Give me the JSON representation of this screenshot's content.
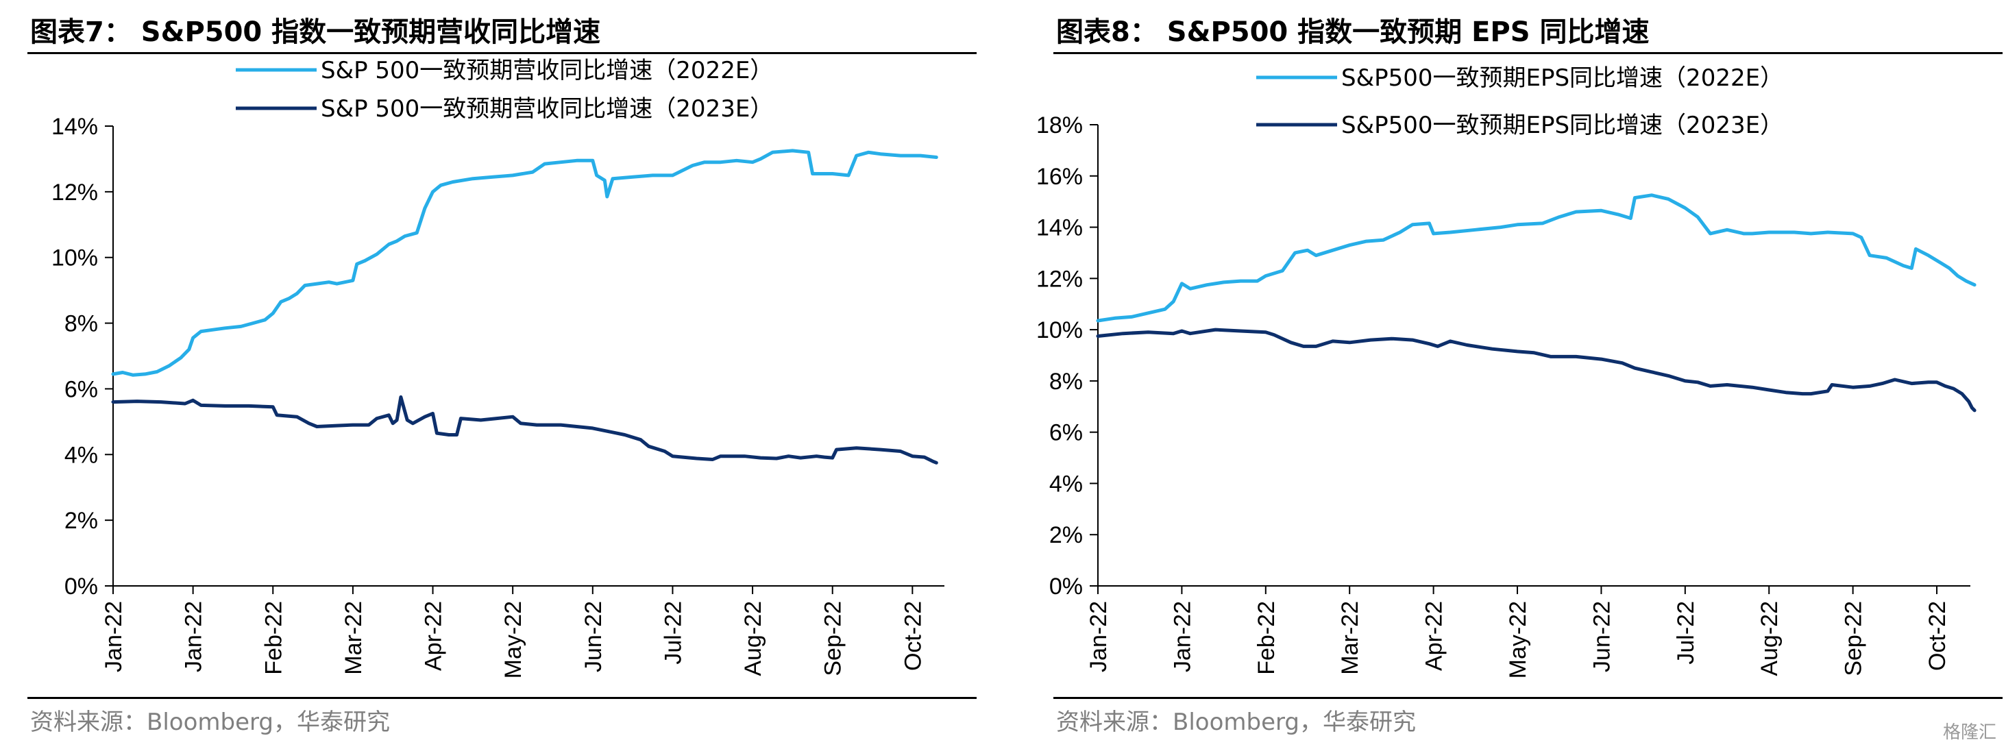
{
  "colors": {
    "series_2022": "#27aee8",
    "series_2023": "#0d2f6b"
  },
  "watermark": "格隆汇",
  "panels": [
    {
      "title": "图表7： S&P500 指数一致预期营收同比增速",
      "source": "资料来源：Bloomberg，华泰研究"
    },
    {
      "title": "图表8： S&P500 指数一致预期 EPS 同比增速",
      "source": "资料来源：Bloomberg，华泰研究"
    }
  ],
  "chart_data": [
    {
      "type": "line",
      "ylim": [
        0,
        14
      ],
      "yticks": [
        "0%",
        "2%",
        "4%",
        "6%",
        "8%",
        "10%",
        "12%",
        "14%"
      ],
      "yticks_values": [
        0,
        2,
        4,
        6,
        8,
        10,
        12,
        14
      ],
      "xlim": [
        0,
        10.4
      ],
      "xticks": [
        "Jan-22",
        "Jan-22",
        "Feb-22",
        "Mar-22",
        "Apr-22",
        "May-22",
        "Jun-22",
        "Jul-22",
        "Aug-22",
        "Sep-22",
        "Oct-22"
      ],
      "legend_position": "top",
      "grid": false,
      "series": [
        {
          "name": "S&P 500一致预期营收同比增速（2022E）",
          "color": "#27aee8",
          "points": [
            [
              0.0,
              6.45
            ],
            [
              0.12,
              6.5
            ],
            [
              0.25,
              6.42
            ],
            [
              0.4,
              6.45
            ],
            [
              0.55,
              6.52
            ],
            [
              0.7,
              6.7
            ],
            [
              0.85,
              6.95
            ],
            [
              0.95,
              7.2
            ],
            [
              1.0,
              7.55
            ],
            [
              1.1,
              7.75
            ],
            [
              1.25,
              7.8
            ],
            [
              1.4,
              7.85
            ],
            [
              1.6,
              7.9
            ],
            [
              1.75,
              8.0
            ],
            [
              1.9,
              8.1
            ],
            [
              2.0,
              8.3
            ],
            [
              2.1,
              8.65
            ],
            [
              2.2,
              8.75
            ],
            [
              2.3,
              8.9
            ],
            [
              2.4,
              9.15
            ],
            [
              2.55,
              9.2
            ],
            [
              2.7,
              9.25
            ],
            [
              2.8,
              9.2
            ],
            [
              2.9,
              9.25
            ],
            [
              3.0,
              9.3
            ],
            [
              3.05,
              9.8
            ],
            [
              3.15,
              9.9
            ],
            [
              3.3,
              10.1
            ],
            [
              3.45,
              10.4
            ],
            [
              3.55,
              10.5
            ],
            [
              3.65,
              10.65
            ],
            [
              3.8,
              10.75
            ],
            [
              3.9,
              11.5
            ],
            [
              4.0,
              12.0
            ],
            [
              4.1,
              12.2
            ],
            [
              4.25,
              12.3
            ],
            [
              4.5,
              12.4
            ],
            [
              4.75,
              12.45
            ],
            [
              5.0,
              12.5
            ],
            [
              5.25,
              12.6
            ],
            [
              5.4,
              12.85
            ],
            [
              5.6,
              12.9
            ],
            [
              5.8,
              12.95
            ],
            [
              6.0,
              12.95
            ],
            [
              6.05,
              12.5
            ],
            [
              6.15,
              12.35
            ],
            [
              6.18,
              11.85
            ],
            [
              6.25,
              12.4
            ],
            [
              6.5,
              12.45
            ],
            [
              6.75,
              12.5
            ],
            [
              7.0,
              12.5
            ],
            [
              7.25,
              12.8
            ],
            [
              7.4,
              12.9
            ],
            [
              7.6,
              12.9
            ],
            [
              7.8,
              12.95
            ],
            [
              8.0,
              12.9
            ],
            [
              8.1,
              13.0
            ],
            [
              8.25,
              13.2
            ],
            [
              8.5,
              13.25
            ],
            [
              8.7,
              13.2
            ],
            [
              8.75,
              12.55
            ],
            [
              9.0,
              12.55
            ],
            [
              9.2,
              12.5
            ],
            [
              9.3,
              13.1
            ],
            [
              9.45,
              13.2
            ],
            [
              9.6,
              13.15
            ],
            [
              9.85,
              13.1
            ],
            [
              10.1,
              13.1
            ],
            [
              10.3,
              13.05
            ]
          ]
        },
        {
          "name": "S&P 500一致预期营收同比增速（2023E）",
          "color": "#0d2f6b",
          "points": [
            [
              0.0,
              5.6
            ],
            [
              0.3,
              5.62
            ],
            [
              0.6,
              5.6
            ],
            [
              0.9,
              5.55
            ],
            [
              1.0,
              5.65
            ],
            [
              1.1,
              5.5
            ],
            [
              1.4,
              5.48
            ],
            [
              1.7,
              5.48
            ],
            [
              2.0,
              5.45
            ],
            [
              2.05,
              5.2
            ],
            [
              2.3,
              5.15
            ],
            [
              2.45,
              4.95
            ],
            [
              2.55,
              4.85
            ],
            [
              2.8,
              4.88
            ],
            [
              3.0,
              4.9
            ],
            [
              3.2,
              4.9
            ],
            [
              3.3,
              5.1
            ],
            [
              3.45,
              5.2
            ],
            [
              3.5,
              4.95
            ],
            [
              3.55,
              5.05
            ],
            [
              3.6,
              5.75
            ],
            [
              3.68,
              5.05
            ],
            [
              3.75,
              4.95
            ],
            [
              3.9,
              5.15
            ],
            [
              4.0,
              5.25
            ],
            [
              4.05,
              4.65
            ],
            [
              4.2,
              4.6
            ],
            [
              4.3,
              4.6
            ],
            [
              4.35,
              5.1
            ],
            [
              4.6,
              5.05
            ],
            [
              4.8,
              5.1
            ],
            [
              5.0,
              5.15
            ],
            [
              5.1,
              4.95
            ],
            [
              5.3,
              4.9
            ],
            [
              5.6,
              4.9
            ],
            [
              5.8,
              4.85
            ],
            [
              6.0,
              4.8
            ],
            [
              6.2,
              4.7
            ],
            [
              6.4,
              4.6
            ],
            [
              6.6,
              4.45
            ],
            [
              6.7,
              4.25
            ],
            [
              6.9,
              4.1
            ],
            [
              7.0,
              3.95
            ],
            [
              7.3,
              3.88
            ],
            [
              7.5,
              3.85
            ],
            [
              7.6,
              3.95
            ],
            [
              7.9,
              3.95
            ],
            [
              8.1,
              3.9
            ],
            [
              8.3,
              3.88
            ],
            [
              8.45,
              3.95
            ],
            [
              8.6,
              3.9
            ],
            [
              8.8,
              3.95
            ],
            [
              8.9,
              3.92
            ],
            [
              9.0,
              3.9
            ],
            [
              9.05,
              4.15
            ],
            [
              9.3,
              4.2
            ],
            [
              9.6,
              4.15
            ],
            [
              9.85,
              4.1
            ],
            [
              10.0,
              3.95
            ],
            [
              10.15,
              3.92
            ],
            [
              10.25,
              3.8
            ],
            [
              10.3,
              3.75
            ]
          ]
        }
      ]
    },
    {
      "type": "line",
      "ylim": [
        0,
        18
      ],
      "yticks": [
        "0%",
        "2%",
        "4%",
        "6%",
        "8%",
        "10%",
        "12%",
        "14%",
        "16%",
        "18%"
      ],
      "yticks_values": [
        0,
        2,
        4,
        6,
        8,
        10,
        12,
        14,
        16,
        18
      ],
      "xlim": [
        0,
        10.4
      ],
      "xticks": [
        "Jan-22",
        "Jan-22",
        "Feb-22",
        "Mar-22",
        "Apr-22",
        "May-22",
        "Jun-22",
        "Jul-22",
        "Aug-22",
        "Sep-22",
        "Oct-22"
      ],
      "legend_position": "top",
      "grid": false,
      "series": [
        {
          "name": "S&P500一致预期EPS同比增速（2022E）",
          "color": "#27aee8",
          "points": [
            [
              0.0,
              10.35
            ],
            [
              0.2,
              10.45
            ],
            [
              0.4,
              10.5
            ],
            [
              0.6,
              10.65
            ],
            [
              0.8,
              10.8
            ],
            [
              0.9,
              11.1
            ],
            [
              1.0,
              11.8
            ],
            [
              1.1,
              11.6
            ],
            [
              1.3,
              11.75
            ],
            [
              1.5,
              11.85
            ],
            [
              1.7,
              11.9
            ],
            [
              1.9,
              11.9
            ],
            [
              2.0,
              12.1
            ],
            [
              2.2,
              12.3
            ],
            [
              2.35,
              13.0
            ],
            [
              2.5,
              13.1
            ],
            [
              2.6,
              12.9
            ],
            [
              2.8,
              13.1
            ],
            [
              3.0,
              13.3
            ],
            [
              3.2,
              13.45
            ],
            [
              3.4,
              13.5
            ],
            [
              3.6,
              13.8
            ],
            [
              3.75,
              14.1
            ],
            [
              3.95,
              14.15
            ],
            [
              4.0,
              13.75
            ],
            [
              4.2,
              13.8
            ],
            [
              4.5,
              13.9
            ],
            [
              4.8,
              14.0
            ],
            [
              5.0,
              14.1
            ],
            [
              5.3,
              14.15
            ],
            [
              5.5,
              14.4
            ],
            [
              5.7,
              14.6
            ],
            [
              6.0,
              14.65
            ],
            [
              6.2,
              14.5
            ],
            [
              6.35,
              14.35
            ],
            [
              6.4,
              15.15
            ],
            [
              6.6,
              15.25
            ],
            [
              6.8,
              15.1
            ],
            [
              7.0,
              14.75
            ],
            [
              7.15,
              14.4
            ],
            [
              7.3,
              13.75
            ],
            [
              7.5,
              13.9
            ],
            [
              7.7,
              13.75
            ],
            [
              7.8,
              13.75
            ],
            [
              8.0,
              13.8
            ],
            [
              8.3,
              13.8
            ],
            [
              8.5,
              13.75
            ],
            [
              8.7,
              13.8
            ],
            [
              9.0,
              13.75
            ],
            [
              9.1,
              13.6
            ],
            [
              9.2,
              12.9
            ],
            [
              9.4,
              12.8
            ],
            [
              9.6,
              12.5
            ],
            [
              9.7,
              12.4
            ],
            [
              9.75,
              13.15
            ],
            [
              9.9,
              12.9
            ],
            [
              10.05,
              12.6
            ],
            [
              10.15,
              12.4
            ],
            [
              10.25,
              12.1
            ],
            [
              10.35,
              11.9
            ],
            [
              10.45,
              11.75
            ]
          ]
        },
        {
          "name": "S&P500一致预期EPS同比增速（2023E）",
          "color": "#0d2f6b",
          "points": [
            [
              0.0,
              9.75
            ],
            [
              0.3,
              9.85
            ],
            [
              0.6,
              9.9
            ],
            [
              0.9,
              9.85
            ],
            [
              1.0,
              9.95
            ],
            [
              1.1,
              9.85
            ],
            [
              1.4,
              10.0
            ],
            [
              1.7,
              9.95
            ],
            [
              2.0,
              9.9
            ],
            [
              2.1,
              9.8
            ],
            [
              2.3,
              9.5
            ],
            [
              2.45,
              9.35
            ],
            [
              2.6,
              9.35
            ],
            [
              2.8,
              9.55
            ],
            [
              3.0,
              9.5
            ],
            [
              3.25,
              9.6
            ],
            [
              3.5,
              9.65
            ],
            [
              3.75,
              9.6
            ],
            [
              3.95,
              9.45
            ],
            [
              4.05,
              9.35
            ],
            [
              4.2,
              9.55
            ],
            [
              4.4,
              9.4
            ],
            [
              4.7,
              9.25
            ],
            [
              5.0,
              9.15
            ],
            [
              5.2,
              9.1
            ],
            [
              5.4,
              8.95
            ],
            [
              5.7,
              8.95
            ],
            [
              6.0,
              8.85
            ],
            [
              6.25,
              8.7
            ],
            [
              6.4,
              8.5
            ],
            [
              6.6,
              8.35
            ],
            [
              6.8,
              8.2
            ],
            [
              7.0,
              8.0
            ],
            [
              7.15,
              7.95
            ],
            [
              7.3,
              7.8
            ],
            [
              7.5,
              7.85
            ],
            [
              7.8,
              7.75
            ],
            [
              8.0,
              7.65
            ],
            [
              8.2,
              7.55
            ],
            [
              8.4,
              7.5
            ],
            [
              8.5,
              7.5
            ],
            [
              8.7,
              7.6
            ],
            [
              8.75,
              7.85
            ],
            [
              9.0,
              7.75
            ],
            [
              9.2,
              7.8
            ],
            [
              9.35,
              7.9
            ],
            [
              9.5,
              8.05
            ],
            [
              9.7,
              7.9
            ],
            [
              9.9,
              7.95
            ],
            [
              10.0,
              7.95
            ],
            [
              10.1,
              7.8
            ],
            [
              10.2,
              7.7
            ],
            [
              10.3,
              7.5
            ],
            [
              10.38,
              7.2
            ],
            [
              10.42,
              6.95
            ],
            [
              10.45,
              6.85
            ]
          ]
        }
      ]
    }
  ]
}
